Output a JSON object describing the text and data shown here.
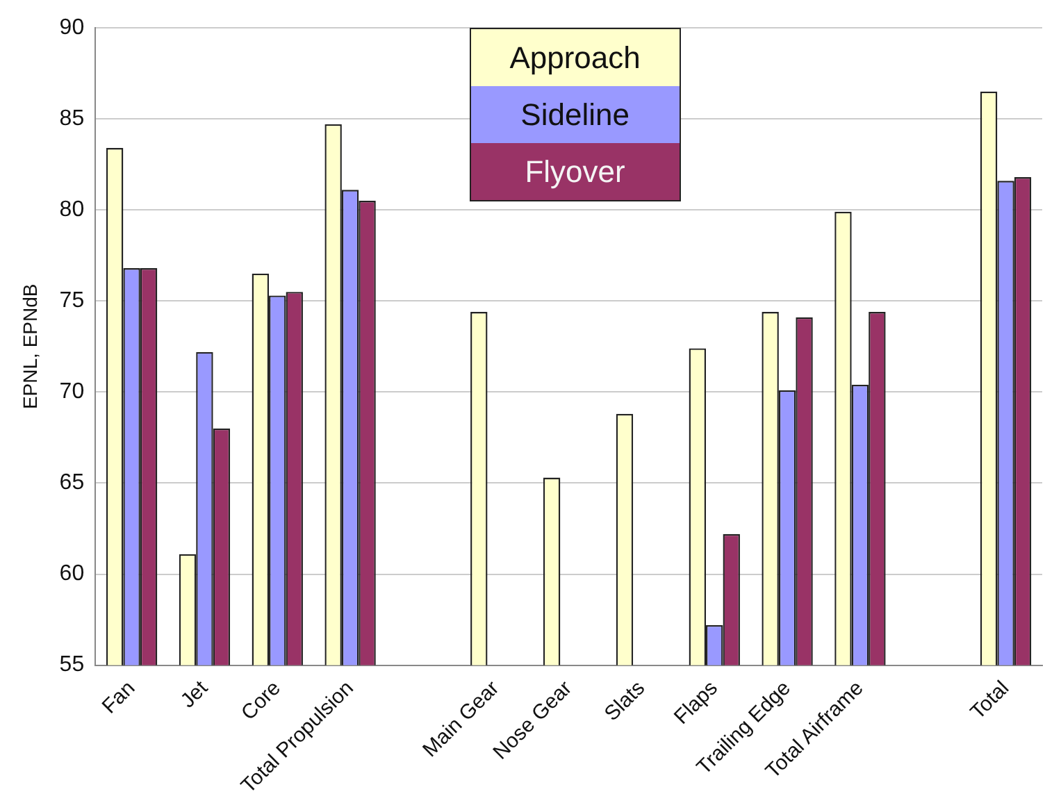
{
  "chart_data": {
    "type": "bar",
    "ylabel": "EPNL, EPNdB",
    "categories": [
      "Fan",
      "Jet",
      "Core",
      "Total Propulsion",
      null,
      "Main Gear",
      "Nose Gear",
      "Slats",
      "Flaps",
      "Trailing Edge",
      "Total Airframe",
      null,
      "Total"
    ],
    "series": [
      {
        "name": "Approach",
        "color": "#ffffcc",
        "values": [
          83.4,
          61.1,
          76.5,
          84.7,
          null,
          74.4,
          65.3,
          68.8,
          72.4,
          74.4,
          79.9,
          null,
          86.5
        ]
      },
      {
        "name": "Sideline",
        "color": "#9999ff",
        "values": [
          76.8,
          72.2,
          75.3,
          81.1,
          null,
          null,
          null,
          null,
          57.2,
          70.1,
          70.4,
          null,
          81.6
        ]
      },
      {
        "name": "Flyover",
        "color": "#993366",
        "values": [
          76.8,
          68.0,
          75.5,
          80.5,
          null,
          null,
          null,
          null,
          62.2,
          74.1,
          74.4,
          null,
          81.8
        ]
      }
    ],
    "ylim": [
      55,
      90
    ],
    "yticks": [
      55,
      60,
      65,
      70,
      75,
      80,
      85,
      90
    ],
    "grid": "y",
    "legend": "top"
  }
}
